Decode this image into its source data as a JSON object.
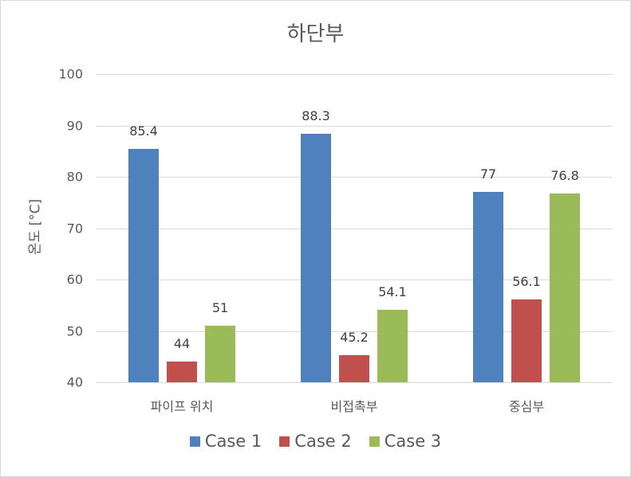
{
  "chart_data": {
    "type": "bar",
    "title": "하단부",
    "xlabel": "",
    "ylabel": "온도 [°C]",
    "ylim": [
      40,
      100
    ],
    "yticks": [
      40,
      50,
      60,
      70,
      80,
      90,
      100
    ],
    "grid": true,
    "legend_position": "bottom",
    "categories": [
      "파이프 위치",
      "비접촉부",
      "중심부"
    ],
    "series": [
      {
        "name": "Case 1",
        "color": "#4f81bd",
        "values": [
          85.4,
          88.3,
          77
        ]
      },
      {
        "name": "Case 2",
        "color": "#c0504d",
        "values": [
          44,
          45.2,
          56.1
        ]
      },
      {
        "name": "Case 3",
        "color": "#9bbb59",
        "values": [
          51,
          54.1,
          76.8
        ]
      }
    ],
    "data_labels": [
      [
        "85.4",
        "88.3",
        "77"
      ],
      [
        "44",
        "45.2",
        "56.1"
      ],
      [
        "51",
        "54.1",
        "76.8"
      ]
    ]
  }
}
